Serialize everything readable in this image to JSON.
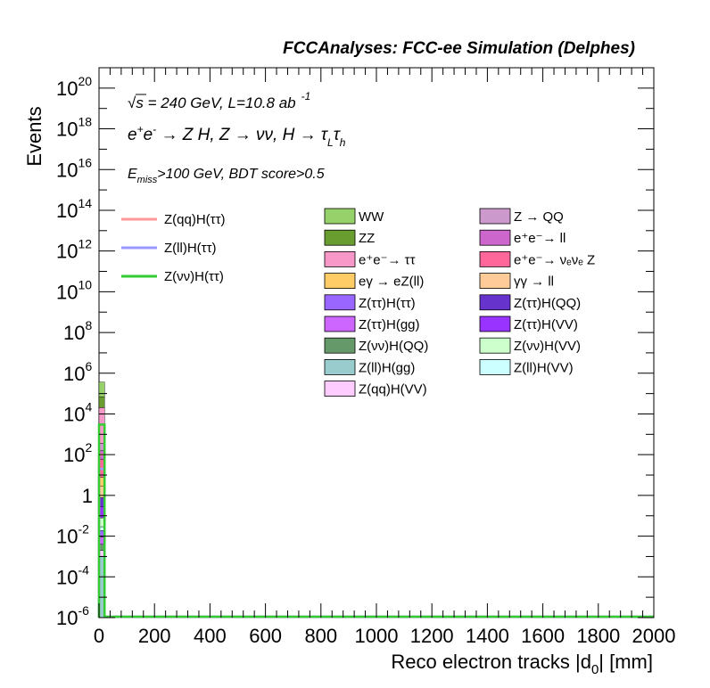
{
  "chart_data": {
    "type": "bar",
    "title": "FCCAnalyses: FCC-ee Simulation (Delphes)",
    "xlabel": "Reco electron tracks |d",
    "xlabel_sub": "0",
    "xlabel_tail": "| [mm]",
    "ylabel": "Events",
    "xlim": [
      0,
      2000
    ],
    "ylim": [
      1e-06,
      1e+21
    ],
    "yscale": "log",
    "x_ticks": [
      "0",
      "200",
      "400",
      "600",
      "800",
      "1000",
      "1200",
      "1400",
      "1600",
      "1800",
      "2000"
    ],
    "y_ticks": [
      {
        "base": "10",
        "exp": "20",
        "value": 1e+20
      },
      {
        "base": "10",
        "exp": "18",
        "value": 1e+18
      },
      {
        "base": "10",
        "exp": "16",
        "value": 1e+16
      },
      {
        "base": "10",
        "exp": "14",
        "value": 100000000000000.0
      },
      {
        "base": "10",
        "exp": "12",
        "value": 1000000000000.0
      },
      {
        "base": "10",
        "exp": "10",
        "value": 10000000000.0
      },
      {
        "base": "10",
        "exp": "8",
        "value": 100000000.0
      },
      {
        "base": "10",
        "exp": "6",
        "value": 1000000.0
      },
      {
        "base": "10",
        "exp": "4",
        "value": 10000.0
      },
      {
        "base": "10",
        "exp": "2",
        "value": 100.0
      },
      {
        "base": "1",
        "exp": "",
        "value": 1
      },
      {
        "base": "10",
        "exp": "-2",
        "value": 0.01
      },
      {
        "base": "10",
        "exp": "-4",
        "value": 0.0001
      },
      {
        "base": "10",
        "exp": "-6",
        "value": 1e-06
      }
    ],
    "annotations": {
      "line1_sqrt": "√s",
      "line1_rest": " = 240 GeV, L=10.8 ab",
      "line1_exp": "-1",
      "line2_a": "e",
      "line2_a_sup": "+",
      "line2_b": "e",
      "line2_b_sup": "-",
      "line2_c": " → Z H, Z  → νν, H  → τ",
      "line2_sub1": "L",
      "line2_d": "τ",
      "line2_sub2": "h",
      "line3_a": "E",
      "line3_sub": "miss",
      "line3_b": ">100 GeV, BDT score>0.5"
    },
    "stack_bin": [
      0,
      20
    ],
    "stacked_series": [
      {
        "name": "WW",
        "color": "#96d16a",
        "value": 300000
      },
      {
        "name": "ZZ",
        "color": "#6a9d30",
        "value": 50000
      },
      {
        "name": "e⁺e⁻→ ττ",
        "color": "#f898c8",
        "value": 20000
      },
      {
        "name": "eγ → eZ(ll)",
        "color": "#ffcc66",
        "value": 5
      },
      {
        "name": "Z(ττ)H(ττ)",
        "color": "#9966ff",
        "value": 0.01
      },
      {
        "name": "Z(ττ)H(gg)",
        "color": "#cc66ff",
        "value": 0.005
      },
      {
        "name": "Z(νν)H(QQ)",
        "color": "#66996a",
        "value": 0.002
      },
      {
        "name": "Z(ll)H(gg)",
        "color": "#99cccc",
        "value": 0.001
      },
      {
        "name": "Z(qq)H(VV)",
        "color": "#ffccff",
        "value": 0.001
      },
      {
        "name": "Z → QQ",
        "color": "#cc99cc",
        "value": 200
      },
      {
        "name": "e⁺e⁻→ ll",
        "color": "#cc66cc",
        "value": 100
      },
      {
        "name": "e⁺e⁻→ νₑνₑ Z",
        "color": "#ff6699",
        "value": 50
      },
      {
        "name": "γγ → ll",
        "color": "#ffcc99",
        "value": 2
      },
      {
        "name": "Z(ττ)H(QQ)",
        "color": "#6633cc",
        "value": 0.5
      },
      {
        "name": "Z(ττ)H(VV)",
        "color": "#9933ff",
        "value": 0.2
      },
      {
        "name": "Z(νν)H(VV)",
        "color": "#ccffcc",
        "value": 0.05
      },
      {
        "name": "Z(ll)H(VV)",
        "color": "#ccffff",
        "value": 0.01
      }
    ],
    "signal_series": [
      {
        "name": "Z(qq)H(ττ)",
        "color": "#ff9999",
        "value": 100
      },
      {
        "name": "Z(ll)H(ττ)",
        "color": "#9999ff",
        "value": 20
      },
      {
        "name": "Z(νν)H(ττ)",
        "color": "#33cc33",
        "value": 3000
      }
    ],
    "legend_columns": [
      [
        "WW",
        "ZZ",
        "e⁺e⁻→ ττ",
        "eγ → eZ(ll)",
        "Z(ττ)H(ττ)",
        "Z(ττ)H(gg)",
        "Z(νν)H(QQ)",
        "Z(ll)H(gg)",
        "Z(qq)H(VV)"
      ],
      [
        "Z → QQ",
        "e⁺e⁻→ ll",
        "e⁺e⁻→ νₑνₑ Z",
        "γγ → ll",
        "Z(ττ)H(QQ)",
        "Z(ττ)H(VV)",
        "Z(νν)H(VV)",
        "Z(ll)H(VV)"
      ]
    ],
    "grid": false,
    "legend_position": "top-center"
  }
}
